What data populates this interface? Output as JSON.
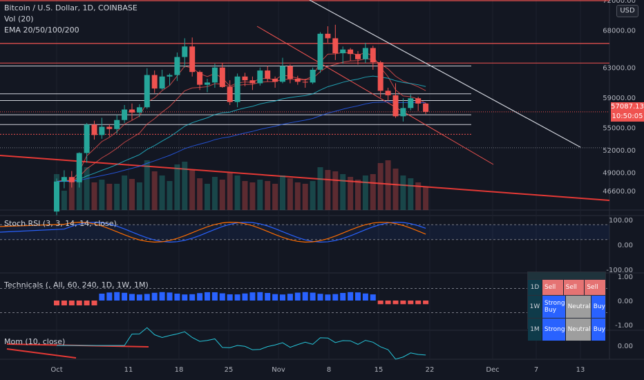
{
  "legend": {
    "symbol": "Bitcoin / U.S. Dollar, 1D, COINBASE",
    "vol": "Vol (20)",
    "ema": "EMA 20/50/100/200",
    "stoch": "Stoch RSI (3, 3, 14, 14, close)",
    "technicals": "Technicals (, All, 60, 240, 1D, 1W, 1M)",
    "mom": "Mom (10, close)"
  },
  "currency": "USD",
  "last_price": "57087.13",
  "countdown": "10:50:05",
  "colors": {
    "up": "#26a69a",
    "down": "#ef5350",
    "background": "#131722",
    "grid": "#1e222d"
  },
  "tech_table": {
    "rows": [
      {
        "tf": "1D",
        "cells": [
          "Sell",
          "Sell",
          "Sell"
        ]
      },
      {
        "tf": "1W",
        "cells": [
          "Strong Buy",
          "Neutral",
          "Buy"
        ]
      },
      {
        "tf": "1M",
        "cells": [
          "Strong",
          "Neutral",
          "Buy"
        ]
      }
    ]
  },
  "chart_data": {
    "type": "candlestick",
    "title": "Bitcoin / U.S. Dollar, 1D, COINBASE",
    "x_ticks": [
      "Oct",
      "11",
      "18",
      "25",
      "Nov",
      "8",
      "15",
      "22",
      "Dec",
      "7",
      "13"
    ],
    "y_ticks": [
      "72000.00",
      "68000.00",
      "63000.00",
      "59000.00",
      "55000.00",
      "52000.00",
      "49000.00",
      "46600.00"
    ],
    "ylim": [
      44000,
      72000
    ],
    "candles": [
      [
        43800,
        48200,
        43300,
        47800
      ],
      [
        47800,
        49300,
        46900,
        48400
      ],
      [
        48400,
        49200,
        47000,
        47700
      ],
      [
        47700,
        51700,
        47000,
        51600
      ],
      [
        51600,
        55600,
        50300,
        55400
      ],
      [
        55400,
        55900,
        53400,
        54000
      ],
      [
        54000,
        56300,
        53500,
        55100
      ],
      [
        55100,
        55400,
        53800,
        54800
      ],
      [
        54800,
        56700,
        54200,
        56000
      ],
      [
        56000,
        58000,
        55600,
        57400
      ],
      [
        57400,
        58200,
        56000,
        57000
      ],
      [
        57000,
        58100,
        56400,
        57700
      ],
      [
        57700,
        62900,
        57500,
        62000
      ],
      [
        62000,
        62600,
        59600,
        60200
      ],
      [
        60200,
        62700,
        60000,
        61800
      ],
      [
        61800,
        62200,
        60600,
        62000
      ],
      [
        62000,
        65000,
        61200,
        64400
      ],
      [
        64400,
        66900,
        63000,
        65800
      ],
      [
        65800,
        67000,
        61800,
        62400
      ],
      [
        62400,
        62600,
        60000,
        60700
      ],
      [
        60700,
        61500,
        59700,
        61000
      ],
      [
        61000,
        63500,
        60300,
        63000
      ],
      [
        63000,
        63600,
        60300,
        60400
      ],
      [
        60400,
        61300,
        58000,
        58400
      ],
      [
        58400,
        62200,
        57700,
        61800
      ],
      [
        61800,
        62300,
        60500,
        61300
      ],
      [
        61300,
        61800,
        60000,
        60900
      ],
      [
        60900,
        63000,
        60600,
        62600
      ],
      [
        62600,
        63200,
        61100,
        61500
      ],
      [
        61500,
        61800,
        60300,
        61100
      ],
      [
        61100,
        64300,
        60900,
        63200
      ],
      [
        63200,
        63400,
        60900,
        61500
      ],
      [
        61500,
        61900,
        60700,
        61100
      ],
      [
        61100,
        61500,
        60300,
        61000
      ],
      [
        61000,
        63000,
        60800,
        62700
      ],
      [
        62700,
        67700,
        62300,
        67500
      ],
      [
        67500,
        68500,
        66300,
        66900
      ],
      [
        66900,
        68700,
        64000,
        64900
      ],
      [
        64900,
        65800,
        63500,
        65400
      ],
      [
        65400,
        65600,
        63900,
        64800
      ],
      [
        64800,
        65200,
        63400,
        64100
      ],
      [
        64100,
        66300,
        63600,
        65600
      ],
      [
        65600,
        65900,
        62700,
        63700
      ],
      [
        63700,
        63900,
        59000,
        59900
      ],
      [
        59900,
        60300,
        58600,
        59300
      ],
      [
        59300,
        60900,
        56300,
        56500
      ],
      [
        56500,
        58900,
        55800,
        57600
      ],
      [
        57600,
        59400,
        57300,
        58900
      ],
      [
        58900,
        59100,
        57200,
        58200
      ],
      [
        58200,
        58300,
        56800,
        57087.13
      ]
    ],
    "volume": [
      52,
      28,
      40,
      60,
      62,
      40,
      44,
      38,
      38,
      50,
      45,
      40,
      72,
      56,
      50,
      42,
      66,
      70,
      58,
      46,
      38,
      48,
      44,
      54,
      50,
      42,
      40,
      44,
      42,
      38,
      50,
      46,
      40,
      38,
      42,
      62,
      58,
      56,
      52,
      48,
      44,
      50,
      52,
      68,
      72,
      60,
      50,
      46,
      40,
      34
    ],
    "annotations": {
      "horizontal_levels": [
        63200,
        59500,
        58600,
        56700,
        55400,
        52300
      ],
      "resistance_levels": [
        72000,
        66300
      ],
      "dotted_levels": [
        57087.13,
        54100
      ]
    },
    "oscillators": {
      "stoch_rsi": {
        "ylim": [
          -100,
          100
        ],
        "ticks": [
          "100.00",
          "0.00",
          "-100.00"
        ]
      },
      "technicals": {
        "ylim": [
          -1,
          1
        ],
        "ticks": [
          "1.00",
          "0.00",
          "-1.00"
        ]
      },
      "momentum": {
        "ticks": [
          "0.00"
        ]
      }
    }
  }
}
